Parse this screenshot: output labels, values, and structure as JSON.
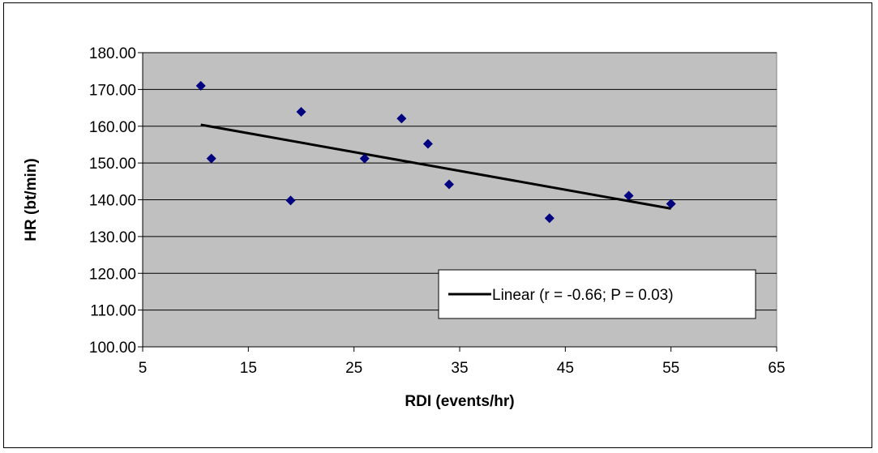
{
  "chart_data": {
    "type": "scatter",
    "xlabel": "RDI (events/hr)",
    "ylabel": "HR (bt/min)",
    "xlim": [
      5,
      65
    ],
    "ylim": [
      100,
      180
    ],
    "xticks": [
      5,
      15,
      25,
      35,
      45,
      55,
      65
    ],
    "yticks": [
      100,
      110,
      120,
      130,
      140,
      150,
      160,
      170,
      180
    ],
    "ytick_labels": [
      "100.00",
      "110.00",
      "120.00",
      "130.00",
      "140.00",
      "150.00",
      "160.00",
      "170.00",
      "180.00"
    ],
    "grid": "horizontal",
    "plot_background": "#c0c0c0",
    "series": [
      {
        "marker": "diamond",
        "color": "#000080",
        "points": [
          {
            "x": 10.5,
            "y": 171.0
          },
          {
            "x": 11.5,
            "y": 151.2
          },
          {
            "x": 19.0,
            "y": 139.8
          },
          {
            "x": 20.0,
            "y": 163.9
          },
          {
            "x": 26.0,
            "y": 151.2
          },
          {
            "x": 29.5,
            "y": 162.1
          },
          {
            "x": 32.0,
            "y": 155.2
          },
          {
            "x": 34.0,
            "y": 144.2
          },
          {
            "x": 43.5,
            "y": 135.0
          },
          {
            "x": 51.0,
            "y": 141.1
          },
          {
            "x": 55.0,
            "y": 138.9
          }
        ]
      }
    ],
    "trendline": {
      "type": "linear",
      "name": "Linear (r = -0.66; P = 0.03)",
      "color": "#000000",
      "x": [
        10.5,
        55.0
      ],
      "y": [
        160.4,
        137.6
      ]
    },
    "legend_position": "bottom-right"
  }
}
